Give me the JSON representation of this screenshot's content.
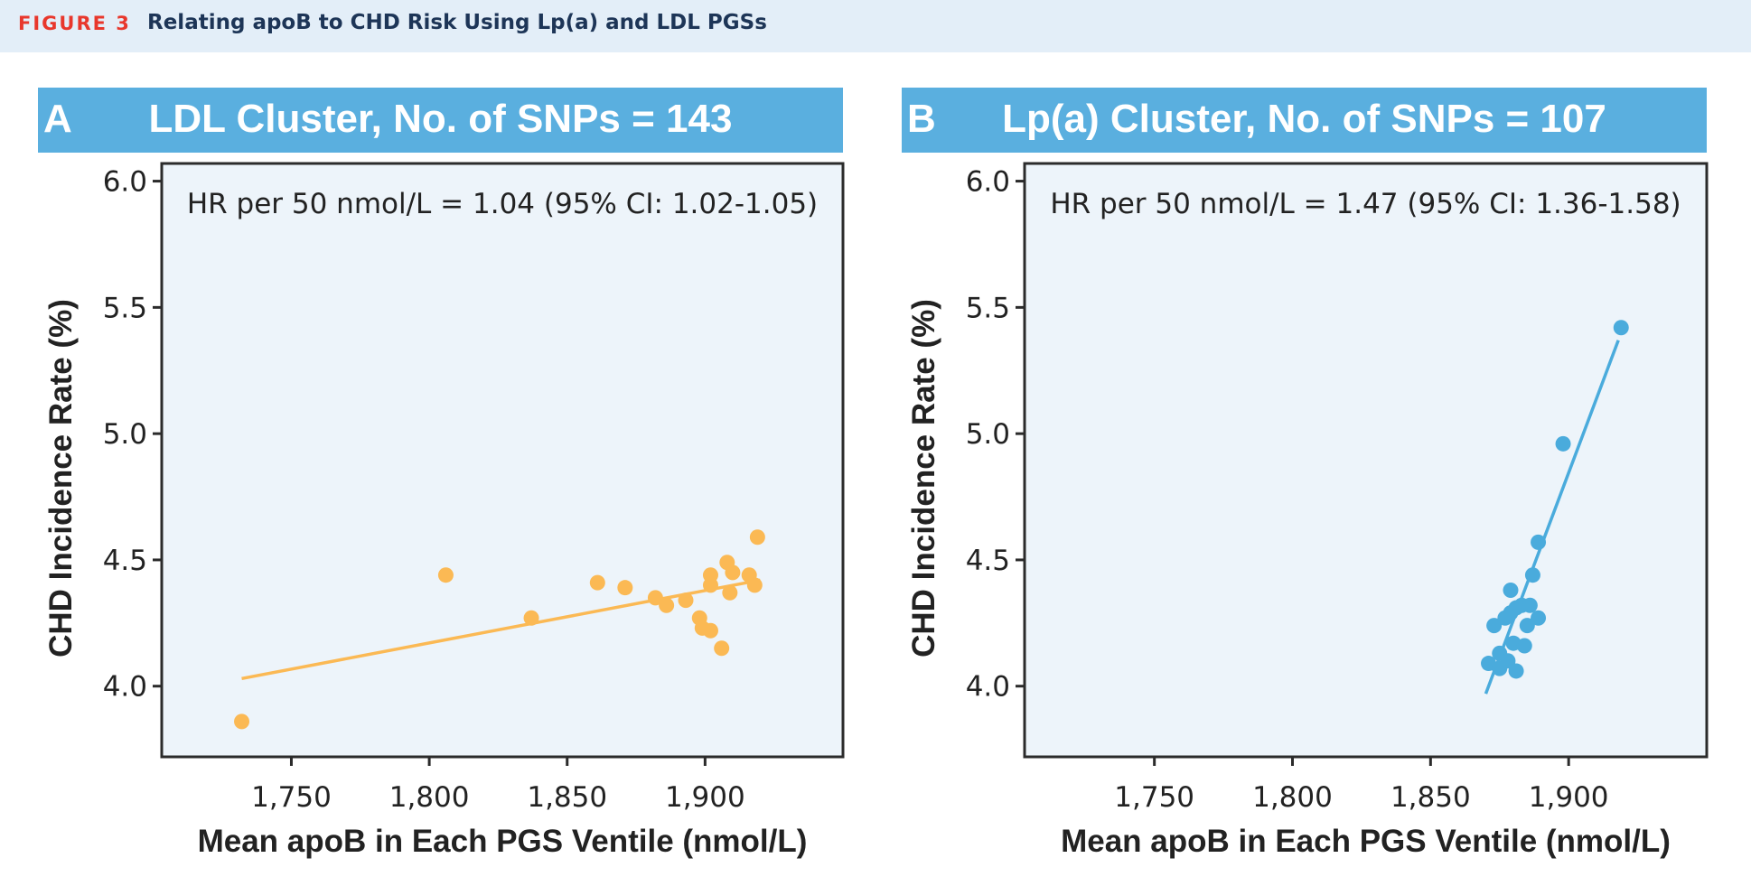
{
  "figure": {
    "label": "FIGURE 3",
    "title": "Relating apoB to CHD Risk Using Lp(a) and LDL PGSs"
  },
  "panels": [
    {
      "letter": "A",
      "title": "LDL Cluster, No. of  SNPs = 143",
      "annotation": "HR per 50 nmol/L = 1.04 (95% CI: 1.02-1.05)"
    },
    {
      "letter": "B",
      "title": "Lp(a) Cluster, No. of  SNPs = 107",
      "annotation": "HR per 50 nmol/L = 1.47 (95% CI: 1.36-1.58)"
    }
  ],
  "chart_data": [
    {
      "type": "scatter",
      "title": "LDL Cluster, No. of  SNPs = 143",
      "xlabel": "Mean apoB in Each PGS Ventile (nmol/L)",
      "ylabel": "CHD Incidence Rate (%)",
      "xlim": [
        1703,
        1950
      ],
      "ylim": [
        3.72,
        6.07
      ],
      "x_ticks": [
        1750,
        1800,
        1850,
        1900
      ],
      "x_tick_labels": [
        "1,750",
        "1,800",
        "1,850",
        "1,900"
      ],
      "y_ticks": [
        4.0,
        4.5,
        5.0,
        5.5,
        6.0
      ],
      "y_tick_labels": [
        "4.0",
        "4.5",
        "5.0",
        "5.5",
        "6.0"
      ],
      "color": "#fbb954",
      "points": [
        {
          "x": 1732,
          "y": 3.86
        },
        {
          "x": 1806,
          "y": 4.44
        },
        {
          "x": 1837,
          "y": 4.27
        },
        {
          "x": 1861,
          "y": 4.41
        },
        {
          "x": 1871,
          "y": 4.39
        },
        {
          "x": 1882,
          "y": 4.35
        },
        {
          "x": 1886,
          "y": 4.32
        },
        {
          "x": 1893,
          "y": 4.34
        },
        {
          "x": 1898,
          "y": 4.27
        },
        {
          "x": 1899,
          "y": 4.23
        },
        {
          "x": 1902,
          "y": 4.4
        },
        {
          "x": 1902,
          "y": 4.44
        },
        {
          "x": 1902,
          "y": 4.22
        },
        {
          "x": 1906,
          "y": 4.15
        },
        {
          "x": 1908,
          "y": 4.49
        },
        {
          "x": 1909,
          "y": 4.37
        },
        {
          "x": 1910,
          "y": 4.45
        },
        {
          "x": 1916,
          "y": 4.44
        },
        {
          "x": 1918,
          "y": 4.4
        },
        {
          "x": 1919,
          "y": 4.59
        }
      ],
      "fit_line": {
        "x": [
          1732,
          1920
        ],
        "y": [
          4.03,
          4.42
        ]
      },
      "annotation": "HR per 50 nmol/L = 1.04 (95% CI: 1.02-1.05)"
    },
    {
      "type": "scatter",
      "title": "Lp(a) Cluster, No. of  SNPs = 107",
      "xlabel": "Mean apoB in Each PGS Ventile (nmol/L)",
      "ylabel": "CHD Incidence Rate (%)",
      "xlim": [
        1703,
        1950
      ],
      "ylim": [
        3.72,
        6.07
      ],
      "x_ticks": [
        1750,
        1800,
        1850,
        1900
      ],
      "x_tick_labels": [
        "1,750",
        "1,800",
        "1,850",
        "1,900"
      ],
      "y_ticks": [
        4.0,
        4.5,
        5.0,
        5.5,
        6.0
      ],
      "y_tick_labels": [
        "4.0",
        "4.5",
        "5.0",
        "5.5",
        "6.0"
      ],
      "color": "#4aabdc",
      "points": [
        {
          "x": 1871,
          "y": 4.09
        },
        {
          "x": 1873,
          "y": 4.24
        },
        {
          "x": 1875,
          "y": 4.13
        },
        {
          "x": 1875,
          "y": 4.07
        },
        {
          "x": 1877,
          "y": 4.27
        },
        {
          "x": 1878,
          "y": 4.1
        },
        {
          "x": 1879,
          "y": 4.38
        },
        {
          "x": 1879,
          "y": 4.29
        },
        {
          "x": 1880,
          "y": 4.17
        },
        {
          "x": 1881,
          "y": 4.31
        },
        {
          "x": 1881,
          "y": 4.06
        },
        {
          "x": 1883,
          "y": 4.32
        },
        {
          "x": 1884,
          "y": 4.16
        },
        {
          "x": 1885,
          "y": 4.24
        },
        {
          "x": 1886,
          "y": 4.32
        },
        {
          "x": 1887,
          "y": 4.44
        },
        {
          "x": 1889,
          "y": 4.27
        },
        {
          "x": 1889,
          "y": 4.57
        },
        {
          "x": 1898,
          "y": 4.96
        },
        {
          "x": 1919,
          "y": 5.42
        }
      ],
      "fit_line": {
        "x": [
          1870,
          1918
        ],
        "y": [
          3.97,
          5.37
        ]
      },
      "annotation": "HR per 50 nmol/L = 1.47 (95% CI: 1.36-1.58)"
    }
  ]
}
